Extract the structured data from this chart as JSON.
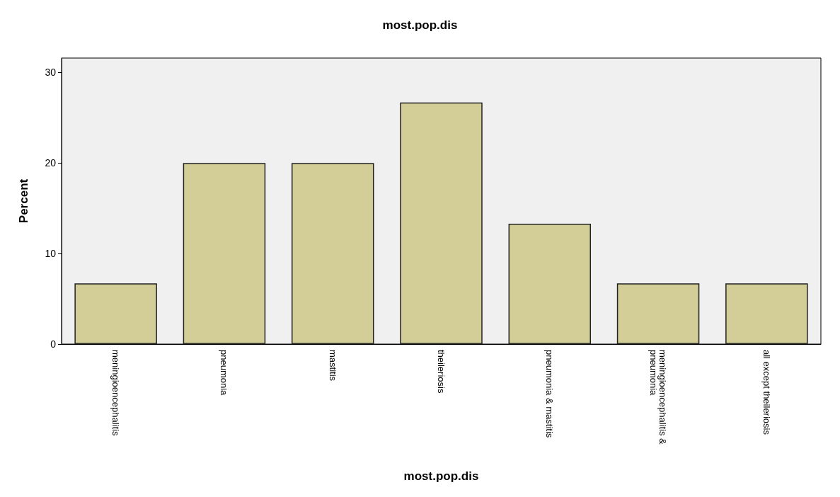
{
  "chart_data": {
    "type": "bar",
    "title": "most.pop.dis",
    "xlabel": "most.pop.dis",
    "ylabel": "Percent",
    "categories": [
      "meningioencephalitis",
      "pneumonia",
      "mastitis",
      "theileriosis",
      "pneumonia & mastitis",
      "meningioencephalitis & pneumonia",
      "all except theileriosis"
    ],
    "values": [
      6.7,
      20,
      20,
      26.7,
      13.3,
      6.7,
      6.7
    ],
    "color": "#d3ce97",
    "ylim": [
      0,
      31.6
    ],
    "yticks": [
      0,
      10,
      20,
      30
    ]
  }
}
